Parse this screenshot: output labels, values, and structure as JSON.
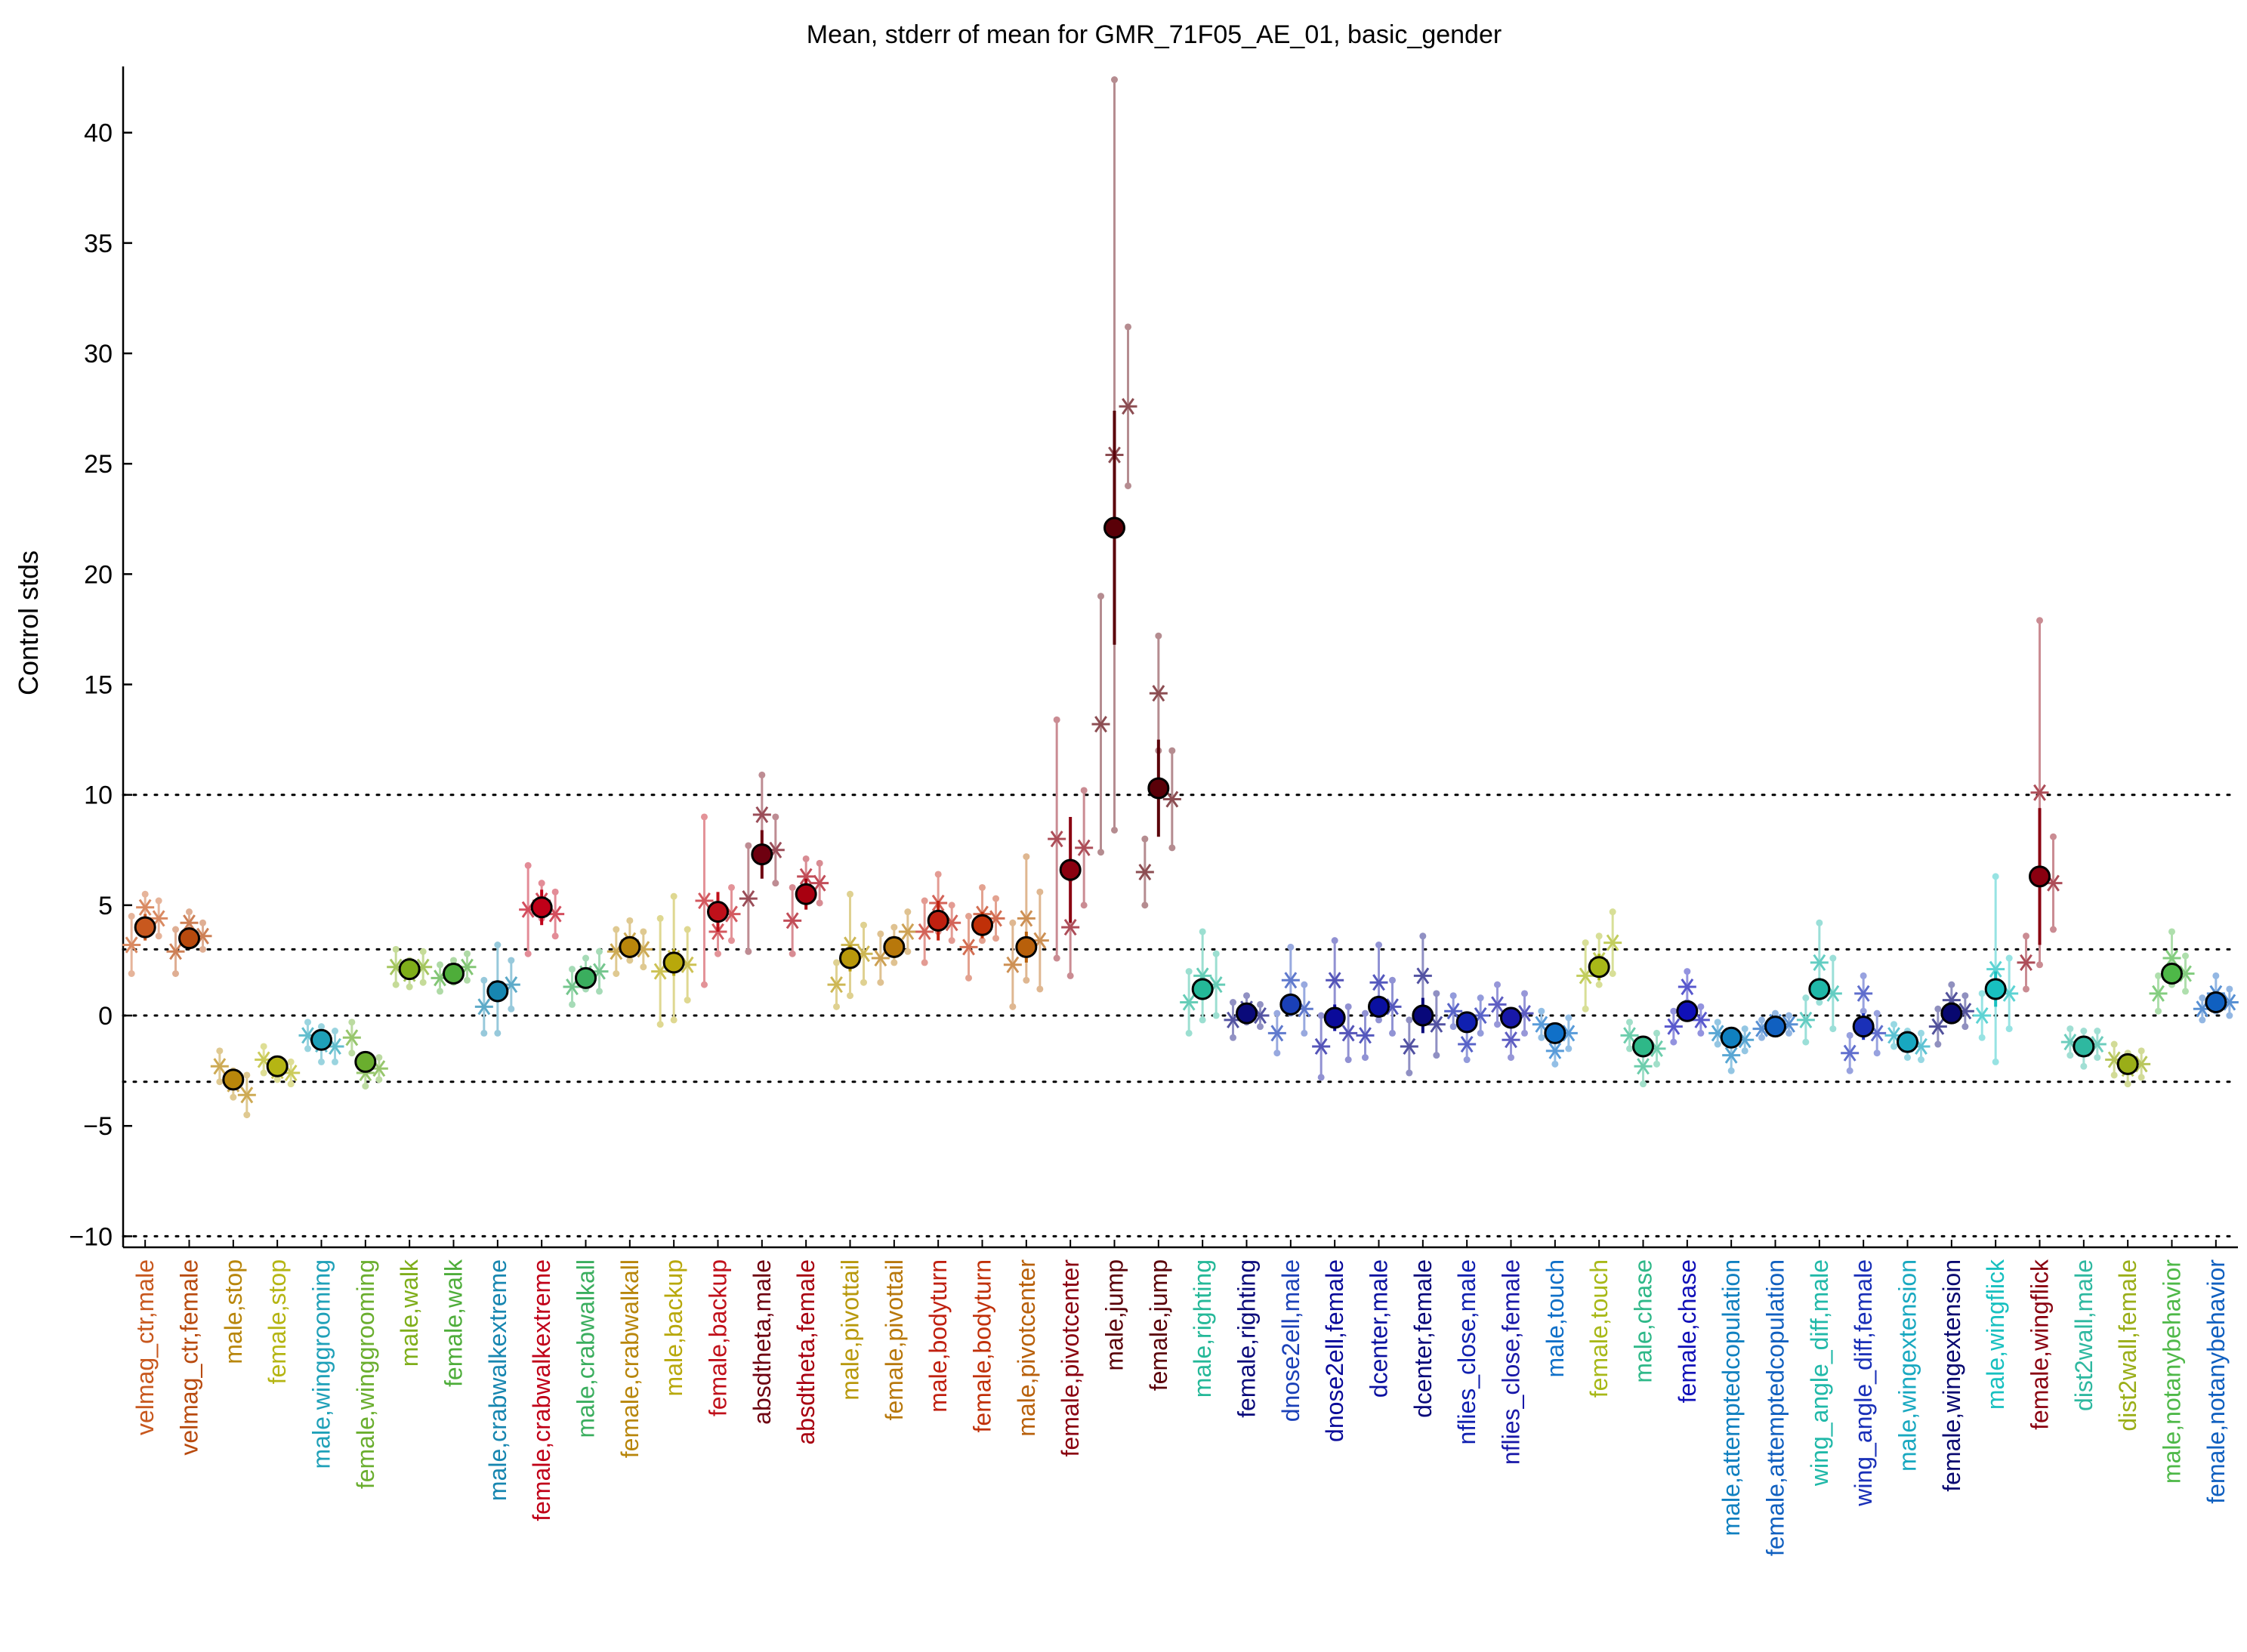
{
  "chart_data": {
    "type": "scatter",
    "title": "Mean, stderr of mean for GMR_71F05_AE_01, basic_gender",
    "ylabel": "Control stds",
    "xlabel": "",
    "ylim": [
      -10.5,
      43
    ],
    "yticks": [
      -10,
      -5,
      0,
      5,
      10,
      15,
      20,
      25,
      30,
      35,
      40
    ],
    "reference_lines": [
      -3,
      0,
      3,
      10,
      -10
    ],
    "grid": false,
    "legend": "none",
    "categories": [
      "velmag_ctr,male",
      "velmag_ctr,female",
      "male,stop",
      "female,stop",
      "male,winggrooming",
      "female,winggrooming",
      "male,walk",
      "female,walk",
      "male,crabwalkextreme",
      "female,crabwalkextreme",
      "male,crabwalkall",
      "female,crabwalkall",
      "male,backup",
      "female,backup",
      "absdtheta,male",
      "absdtheta,female",
      "male,pivottail",
      "female,pivottail",
      "male,bodyturn",
      "female,bodyturn",
      "male,pivotcenter",
      "female,pivotcenter",
      "male,jump",
      "female,jump",
      "male,righting",
      "female,righting",
      "dnose2ell,male",
      "dnose2ell,female",
      "dcenter,male",
      "dcenter,female",
      "nflies_close,male",
      "nflies_close,female",
      "male,touch",
      "female,touch",
      "male,chase",
      "female,chase",
      "male,attemptedcopulation",
      "female,attemptedcopulation",
      "wing_angle_diff,male",
      "wing_angle_diff,female",
      "male,wingextension",
      "female,wingextension",
      "male,wingflick",
      "female,wingflick",
      "dist2wall,male",
      "dist2wall,female",
      "male,notanybehavior",
      "female,notanybehavior"
    ],
    "colors": [
      "#c8581e",
      "#b84a0e",
      "#b8860b",
      "#b5b513",
      "#1fa0b8",
      "#6aae2e",
      "#7fae1a",
      "#4ead3a",
      "#1786b0",
      "#c00018",
      "#3aae5e",
      "#b8860b",
      "#b8a80b",
      "#c0101a",
      "#6e0010",
      "#a80010",
      "#b8980b",
      "#b8780b",
      "#c02010",
      "#c03008",
      "#b8600b",
      "#8a0010",
      "#5a0008",
      "#5a0008",
      "#24b898",
      "#0a0a7a",
      "#1a40b8",
      "#0a0a9a",
      "#0a10a0",
      "#08087a",
      "#1020b0",
      "#1818a8",
      "#1070c8",
      "#a8b818",
      "#2eb888",
      "#1010b8",
      "#1080c0",
      "#1060c0",
      "#20b8a8",
      "#1a30b8",
      "#18a8c0",
      "#080870",
      "#18c0c0",
      "#8a0010",
      "#2eb8a0",
      "#9aae18",
      "#4eb848",
      "#1060c0"
    ],
    "means": [
      4.0,
      3.5,
      -2.9,
      -2.3,
      -1.1,
      -2.1,
      2.1,
      1.9,
      1.1,
      4.9,
      1.7,
      3.1,
      2.4,
      4.7,
      7.3,
      5.5,
      2.6,
      3.1,
      4.3,
      4.1,
      3.1,
      6.6,
      22.1,
      10.3,
      1.2,
      0.1,
      0.5,
      -0.1,
      0.4,
      0.0,
      -0.3,
      -0.1,
      -0.8,
      2.2,
      -1.4,
      0.2,
      -1.0,
      -0.5,
      1.2,
      -0.5,
      -1.2,
      0.1,
      1.2,
      6.3,
      -1.4,
      -2.2,
      1.9,
      0.6
    ],
    "stderr": [
      0.6,
      0.5,
      0.4,
      0.3,
      0.3,
      0.3,
      0.3,
      0.3,
      0.5,
      0.8,
      0.3,
      0.5,
      0.6,
      0.9,
      1.1,
      0.7,
      0.6,
      0.5,
      0.9,
      0.6,
      0.7,
      2.4,
      5.3,
      2.2,
      0.5,
      0.2,
      0.5,
      0.6,
      0.5,
      0.8,
      0.3,
      0.4,
      0.3,
      0.6,
      0.3,
      0.4,
      0.3,
      0.3,
      0.5,
      0.6,
      0.3,
      0.4,
      0.8,
      3.1,
      0.3,
      0.3,
      0.4,
      0.3
    ],
    "lines": [
      [
        3.2,
        4.9,
        4.4
      ],
      [
        2.9,
        4.2,
        3.6
      ],
      [
        -2.3,
        -3.1,
        -3.6
      ],
      [
        -2.0,
        -2.5,
        -2.6
      ],
      [
        -0.9,
        -1.3,
        -1.4
      ],
      [
        -1.0,
        -2.6,
        -2.4
      ],
      [
        2.2,
        1.9,
        2.2
      ],
      [
        1.7,
        2.0,
        2.2
      ],
      [
        0.4,
        1.2,
        1.4
      ],
      [
        4.8,
        5.2,
        4.6
      ],
      [
        1.3,
        1.9,
        2.0
      ],
      [
        2.9,
        3.4,
        3.0
      ],
      [
        2.0,
        2.6,
        2.3
      ],
      [
        5.2,
        3.8,
        4.6
      ],
      [
        5.3,
        9.1,
        7.5
      ],
      [
        4.3,
        6.3,
        6.0
      ],
      [
        1.4,
        3.2,
        2.8
      ],
      [
        2.6,
        3.2,
        3.8
      ],
      [
        3.8,
        5.1,
        4.2
      ],
      [
        3.1,
        4.6,
        4.4
      ],
      [
        2.3,
        4.4,
        3.4
      ],
      [
        8.0,
        4.0,
        7.6
      ],
      [
        13.2,
        25.4,
        27.6
      ],
      [
        6.5,
        14.6,
        9.8
      ],
      [
        0.6,
        1.8,
        1.4
      ],
      [
        -0.2,
        0.3,
        0.0
      ],
      [
        -0.8,
        1.6,
        0.3
      ],
      [
        -1.4,
        1.6,
        -0.8
      ],
      [
        -0.9,
        1.5,
        0.4
      ],
      [
        -1.4,
        1.8,
        -0.4
      ],
      [
        0.2,
        -1.3,
        0.0
      ],
      [
        0.5,
        -1.1,
        0.1
      ],
      [
        -0.4,
        -1.6,
        -0.8
      ],
      [
        1.8,
        2.5,
        3.3
      ],
      [
        -0.9,
        -2.3,
        -1.5
      ],
      [
        -0.5,
        1.3,
        -0.2
      ],
      [
        -0.8,
        -1.8,
        -1.1
      ],
      [
        -0.6,
        -0.3,
        -0.4
      ],
      [
        -0.2,
        2.4,
        1.0
      ],
      [
        -1.7,
        1.0,
        -0.8
      ],
      [
        -0.9,
        -1.3,
        -1.4
      ],
      [
        -0.5,
        0.7,
        0.2
      ],
      [
        0.0,
        2.1,
        1.0
      ],
      [
        2.4,
        10.1,
        6.0
      ],
      [
        -1.2,
        -1.5,
        -1.3
      ],
      [
        -2.0,
        -2.4,
        -2.2
      ],
      [
        1.0,
        2.6,
        1.9
      ],
      [
        0.3,
        1.0,
        0.6
      ]
    ],
    "line_stderr": [
      [
        1.3,
        0.6,
        0.8
      ],
      [
        1.0,
        0.5,
        0.6
      ],
      [
        0.7,
        0.6,
        0.9
      ],
      [
        0.6,
        0.4,
        0.5
      ],
      [
        0.6,
        0.8,
        0.7
      ],
      [
        0.7,
        0.6,
        0.5
      ],
      [
        0.8,
        0.6,
        0.7
      ],
      [
        0.6,
        0.5,
        0.6
      ],
      [
        1.2,
        2.0,
        1.1
      ],
      [
        2.0,
        0.8,
        1.0
      ],
      [
        0.8,
        0.7,
        0.9
      ],
      [
        1.0,
        0.9,
        0.8
      ],
      [
        2.4,
        2.8,
        1.6
      ],
      [
        3.8,
        1.0,
        1.2
      ],
      [
        2.4,
        1.8,
        1.5
      ],
      [
        1.5,
        0.8,
        0.9
      ],
      [
        1.0,
        2.3,
        1.3
      ],
      [
        1.1,
        0.8,
        0.9
      ],
      [
        1.4,
        1.3,
        0.8
      ],
      [
        1.4,
        1.2,
        0.9
      ],
      [
        1.9,
        2.8,
        2.2
      ],
      [
        5.4,
        2.2,
        2.6
      ],
      [
        5.8,
        17.0,
        3.6
      ],
      [
        1.5,
        2.6,
        2.2
      ],
      [
        1.4,
        2.0,
        1.4
      ],
      [
        0.8,
        0.6,
        0.5
      ],
      [
        0.9,
        1.5,
        1.1
      ],
      [
        1.4,
        1.8,
        1.2
      ],
      [
        1.0,
        1.7,
        1.2
      ],
      [
        1.2,
        1.8,
        1.4
      ],
      [
        0.7,
        0.7,
        0.8
      ],
      [
        0.9,
        0.8,
        0.9
      ],
      [
        0.6,
        0.6,
        0.7
      ],
      [
        1.5,
        1.1,
        1.4
      ],
      [
        0.6,
        0.8,
        0.7
      ],
      [
        0.7,
        0.7,
        0.6
      ],
      [
        0.5,
        0.7,
        0.5
      ],
      [
        0.4,
        0.4,
        0.4
      ],
      [
        1.0,
        1.8,
        1.6
      ],
      [
        0.8,
        0.8,
        0.9
      ],
      [
        0.5,
        0.6,
        0.6
      ],
      [
        0.8,
        0.7,
        0.7
      ],
      [
        1.0,
        4.2,
        1.6
      ],
      [
        1.2,
        7.8,
        2.1
      ],
      [
        0.6,
        0.8,
        0.6
      ],
      [
        0.7,
        0.7,
        0.6
      ],
      [
        0.8,
        1.2,
        0.8
      ],
      [
        0.5,
        0.8,
        0.6
      ]
    ]
  }
}
